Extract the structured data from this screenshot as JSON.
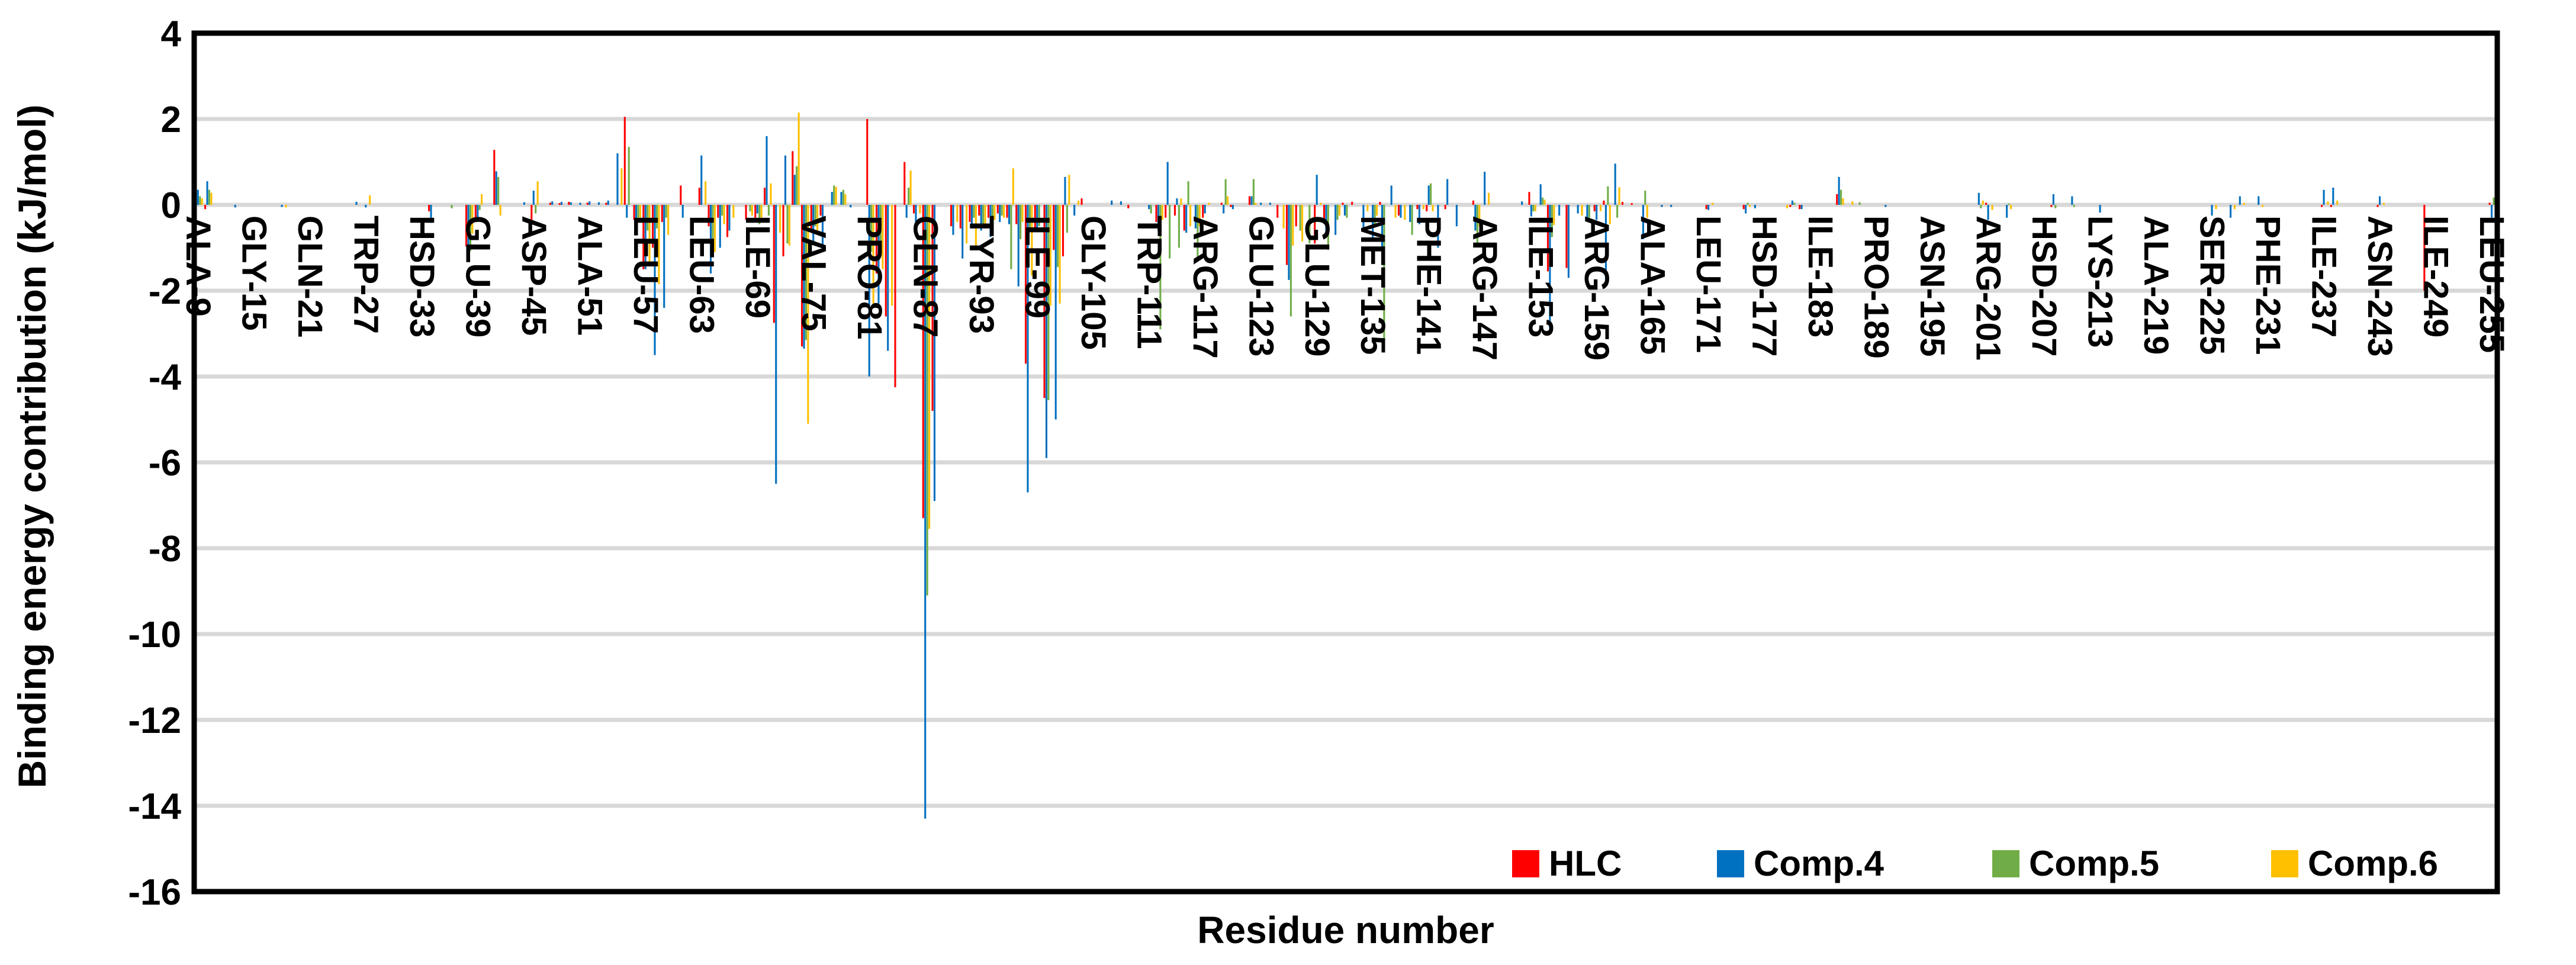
{
  "chart_data": {
    "type": "bar",
    "title": "",
    "xlabel": "Residue number",
    "ylabel": "Binding energy contribution (kJ/mol)",
    "ylim": [
      -16,
      4
    ],
    "yticks": [
      4,
      2,
      0,
      -2,
      -4,
      -6,
      -8,
      -10,
      -12,
      -14,
      -16
    ],
    "grid": true,
    "grid_color": "#D8D8D8",
    "axis_color": "#000000",
    "legend_position": "inside-bottom-right",
    "x_range": {
      "first_residue": 9,
      "last_residue": 255,
      "tick_step": 6
    },
    "x_tick_labels": [
      "ALA-9",
      "GLY-15",
      "GLN-21",
      "TRP-27",
      "HSD-33",
      "GLU-39",
      "ASP-45",
      "ALA-51",
      "LEU-57",
      "LEU-63",
      "ILE-69",
      "VAL-75",
      "PRO-81",
      "GLN-87",
      "TYR-93",
      "ILE-99",
      "GLY-105",
      "TRP-111",
      "ARG-117",
      "GLU-123",
      "GLU-129",
      "MET-135",
      "PHE-141",
      "ARG-147",
      "ILE-153",
      "ARG-159",
      "ALA-165",
      "LEU-171",
      "HSD-177",
      "ILE-183",
      "PRO-189",
      "ASN-195",
      "ARG-201",
      "HSD-207",
      "LYS-213",
      "ALA-219",
      "SER-225",
      "PHE-231",
      "ILE-237",
      "ASN-243",
      "ILE-249",
      "LEU-255"
    ],
    "series": [
      {
        "name": "HLC",
        "color": "#FF0000"
      },
      {
        "name": "Comp.4",
        "color": "#0070C0"
      },
      {
        "name": "Comp.5",
        "color": "#70AD47"
      },
      {
        "name": "Comp.6",
        "color": "#FFC000"
      }
    ],
    "values_note": "values_by_residue maps residue number to [HLC, Comp.4, Comp.5, Comp.6] binding energy contribution in kJ/mol; residues not listed are ~0",
    "values_by_residue": {
      "9": [
        -0.15,
        0.35,
        0.2,
        0.15
      ],
      "10": [
        -0.1,
        0.55,
        0.35,
        0.28
      ],
      "13": [
        0,
        -0.06,
        0,
        0
      ],
      "18": [
        0,
        -0.05,
        0,
        -0.06
      ],
      "26": [
        0,
        0.07,
        0,
        0
      ],
      "27": [
        0,
        -0.06,
        0,
        0.22
      ],
      "34": [
        -0.15,
        -0.42,
        0,
        0
      ],
      "36": [
        0,
        0,
        -0.08,
        0
      ],
      "38": [
        -0.97,
        -1.0,
        -1.08,
        -0.67
      ],
      "39": [
        -0.3,
        -0.35,
        -0.12,
        0.25
      ],
      "41": [
        1.28,
        0.78,
        0.65,
        -0.25
      ],
      "44": [
        0,
        0.06,
        0,
        0
      ],
      "45": [
        -0.42,
        0.33,
        -0.2,
        0.55
      ],
      "47": [
        0.05,
        0.08,
        0,
        0
      ],
      "48": [
        0.04,
        0.07,
        0,
        0
      ],
      "49": [
        0.07,
        0.06,
        0,
        0
      ],
      "50": [
        0,
        0.05,
        0,
        0
      ],
      "51": [
        0.05,
        0.08,
        0,
        0
      ],
      "52": [
        0,
        0.06,
        0,
        0
      ],
      "53": [
        0.05,
        0.1,
        0,
        0
      ],
      "54": [
        0,
        1.2,
        0,
        0.85
      ],
      "55": [
        2.05,
        -0.3,
        1.35,
        0
      ],
      "56": [
        -0.35,
        -0.5,
        -0.3,
        -0.3
      ],
      "57": [
        -1.5,
        -1.5,
        -0.6,
        -1.35
      ],
      "58": [
        -1.0,
        -3.5,
        -0.55,
        -1.85
      ],
      "59": [
        -0.4,
        -2.4,
        -0.3,
        -0.7
      ],
      "61": [
        0.45,
        -0.3,
        0,
        0
      ],
      "63": [
        0.4,
        1.15,
        0,
        0.55
      ],
      "64": [
        -0.5,
        -1.6,
        -0.9,
        -1.1
      ],
      "65": [
        -0.3,
        -1.0,
        -0.25,
        -0.45
      ],
      "66": [
        -0.75,
        -0.6,
        0,
        -0.3
      ],
      "68": [
        -0.35,
        0,
        -0.15,
        -0.25
      ],
      "69": [
        -0.3,
        -0.2,
        -0.45,
        -0.3
      ],
      "70": [
        0.4,
        1.6,
        -0.25,
        0.5
      ],
      "71": [
        -2.75,
        -6.5,
        0,
        -0.65
      ],
      "72": [
        -1.2,
        1.15,
        -0.9,
        -0.95
      ],
      "73": [
        1.25,
        0.7,
        0.9,
        2.15
      ],
      "74": [
        -3.3,
        -3.35,
        -3.15,
        -5.1
      ],
      "75": [
        -0.6,
        -0.85,
        -0.5,
        -0.6
      ],
      "76": [
        -0.25,
        -1.0,
        0,
        0
      ],
      "77": [
        0,
        0.3,
        0.45,
        0.42
      ],
      "78": [
        0,
        0.3,
        0.35,
        0.25
      ],
      "79": [
        0,
        -0.06,
        0,
        0
      ],
      "81": [
        2.0,
        -4.0,
        -1.1,
        -2.3
      ],
      "82": [
        -1.6,
        -2.3,
        -1.15,
        -1.5
      ],
      "83": [
        -2.6,
        -3.4,
        0,
        -2.35
      ],
      "84": [
        -4.25,
        0,
        0,
        0
      ],
      "85": [
        1.0,
        -0.3,
        0.4,
        0.8
      ],
      "86": [
        -0.2,
        -0.4,
        0,
        -0.2
      ],
      "87": [
        -7.3,
        -14.3,
        -9.1,
        -7.55
      ],
      "88": [
        -4.8,
        -6.9,
        0,
        0
      ],
      "90": [
        -0.5,
        -0.7,
        0,
        -0.4
      ],
      "91": [
        -0.55,
        -1.25,
        0,
        -0.9
      ],
      "92": [
        -0.4,
        -0.55,
        -0.3,
        -1.0
      ],
      "93": [
        -0.25,
        -0.6,
        -0.45,
        -0.5
      ],
      "94": [
        -0.3,
        -0.75,
        -0.6,
        -0.35
      ],
      "95": [
        -0.2,
        -0.4,
        -0.25,
        -0.3
      ],
      "96": [
        -0.3,
        -0.45,
        -1.5,
        0.85
      ],
      "97": [
        -0.45,
        -1.9,
        -0.8,
        -0.4
      ],
      "98": [
        -3.7,
        -6.7,
        -0.6,
        -1.65
      ],
      "99": [
        -0.55,
        -0.6,
        -0.5,
        0
      ],
      "100": [
        -4.5,
        -5.9,
        -4.55,
        -2.35
      ],
      "101": [
        -1.05,
        -5.0,
        -1.45,
        -2.3
      ],
      "102": [
        -1.2,
        0.65,
        -0.65,
        0.7
      ],
      "103": [
        0,
        -0.25,
        0,
        0.1
      ],
      "104": [
        0.15,
        0,
        0,
        0
      ],
      "107": [
        0,
        0.1,
        0,
        0
      ],
      "108": [
        0,
        0.08,
        0,
        0
      ],
      "109": [
        -0.08,
        0,
        0,
        0
      ],
      "111": [
        0,
        -0.1,
        -0.2,
        0
      ],
      "112": [
        -0.4,
        -0.6,
        -2.9,
        -0.35
      ],
      "113": [
        -0.3,
        1.0,
        -1.25,
        0
      ],
      "114": [
        -0.25,
        0.15,
        -1.0,
        0.15
      ],
      "115": [
        -0.6,
        -0.65,
        0.55,
        -0.5
      ],
      "116": [
        0,
        -0.55,
        -1.3,
        -0.5
      ],
      "117": [
        -0.3,
        -0.2,
        0,
        0.05
      ],
      "119": [
        0.05,
        -0.2,
        0.6,
        0.2
      ],
      "120": [
        -0.05,
        -0.1,
        0,
        0
      ],
      "122": [
        0.2,
        0.2,
        0.6,
        0.05
      ],
      "123": [
        0,
        0.05,
        0,
        0
      ],
      "124": [
        0,
        0.05,
        0,
        0
      ],
      "125": [
        -0.3,
        0,
        0,
        -0.55
      ],
      "126": [
        -1.4,
        -1.75,
        -2.6,
        -0.95
      ],
      "127": [
        -0.5,
        0,
        -0.6,
        -0.85
      ],
      "128": [
        0,
        0,
        -0.9,
        0
      ],
      "129": [
        -0.9,
        0.7,
        0,
        0.05
      ],
      "130": [
        -0.35,
        -0.75,
        -1.05,
        0
      ],
      "131": [
        0,
        -0.7,
        -0.35,
        -0.25
      ],
      "132": [
        0.05,
        -0.25,
        -0.3,
        0
      ],
      "133": [
        0.07,
        0,
        0,
        0
      ],
      "134": [
        0,
        -0.6,
        0,
        -0.15
      ],
      "135": [
        0,
        -0.85,
        -0.5,
        -0.25
      ],
      "136": [
        0.07,
        -1.0,
        -3.4,
        0
      ],
      "137": [
        0,
        0.45,
        0,
        -0.3
      ],
      "138": [
        -0.25,
        -0.3,
        0,
        -0.35
      ],
      "139": [
        0,
        -0.4,
        -0.7,
        0
      ],
      "140": [
        -0.1,
        -0.45,
        0,
        -0.1
      ],
      "141": [
        -0.15,
        0.45,
        0.5,
        -0.15
      ],
      "142": [
        0,
        -1.0,
        0,
        0
      ],
      "143": [
        -0.1,
        0.6,
        0,
        0
      ],
      "144": [
        0,
        -0.5,
        0,
        0
      ],
      "146": [
        0.1,
        -0.6,
        -0.9,
        -0.5
      ],
      "147": [
        0,
        0.77,
        0,
        0.28
      ],
      "151": [
        0,
        0.08,
        0,
        0
      ],
      "152": [
        0.3,
        -0.27,
        -0.15,
        -0.15
      ],
      "153": [
        0,
        0.48,
        0.17,
        0.12
      ],
      "154": [
        -1.55,
        -2.9,
        -0.75,
        -0.47
      ],
      "155": [
        0,
        -0.25,
        0,
        0
      ],
      "156": [
        -1.47,
        -1.7,
        0,
        0
      ],
      "157": [
        0,
        -0.2,
        0,
        -0.25
      ],
      "158": [
        0,
        -0.3,
        -0.3,
        0
      ],
      "159": [
        -0.15,
        -0.35,
        0,
        -0.15
      ],
      "160": [
        0.1,
        -1.85,
        0.43,
        -0.45
      ],
      "161": [
        0,
        0.96,
        -0.3,
        0.41
      ],
      "162": [
        0.07,
        0,
        0,
        0
      ],
      "163": [
        0.04,
        0,
        0,
        0
      ],
      "164": [
        0,
        -0.8,
        0.33,
        -0.3
      ],
      "166": [
        0,
        -0.05,
        0,
        0
      ],
      "167": [
        0,
        -0.05,
        0,
        0
      ],
      "171": [
        -0.1,
        -0.12,
        0,
        0.05
      ],
      "175": [
        -0.1,
        -0.2,
        0.05,
        -0.05
      ],
      "176": [
        0,
        -0.08,
        0,
        0
      ],
      "179": [
        0,
        0,
        0,
        -0.08
      ],
      "180": [
        -0.05,
        0.1,
        0.05,
        0
      ],
      "181": [
        -0.1,
        -0.1,
        0,
        0
      ],
      "185": [
        0.25,
        0.65,
        0.35,
        0.15
      ],
      "186": [
        0,
        0,
        0,
        0.08
      ],
      "187": [
        0,
        0,
        0.06,
        0
      ],
      "190": [
        0,
        -0.05,
        0,
        0
      ],
      "200": [
        0,
        0.28,
        -0.08,
        0.1
      ],
      "201": [
        0.05,
        -0.35,
        0,
        -0.12
      ],
      "203": [
        0,
        -0.3,
        0.03,
        -0.1
      ],
      "208": [
        -0.05,
        0.25,
        -0.08,
        0
      ],
      "210": [
        0,
        0.2,
        -0.05,
        0
      ],
      "213": [
        0,
        -0.18,
        0,
        0
      ],
      "225": [
        0,
        -0.25,
        0,
        -0.1
      ],
      "227": [
        0,
        -0.3,
        0,
        -0.1
      ],
      "228": [
        0,
        0.2,
        0,
        0.05
      ],
      "230": [
        0,
        0.2,
        0,
        -0.05
      ],
      "237": [
        -0.05,
        0.35,
        0,
        0.08
      ],
      "238": [
        -0.05,
        0.4,
        0,
        0.1
      ],
      "243": [
        -0.05,
        0.2,
        0,
        0.05
      ],
      "248": [
        -2.0,
        0,
        0,
        0
      ],
      "255": [
        0.05,
        -0.3,
        0.17,
        -0.15
      ]
    }
  }
}
